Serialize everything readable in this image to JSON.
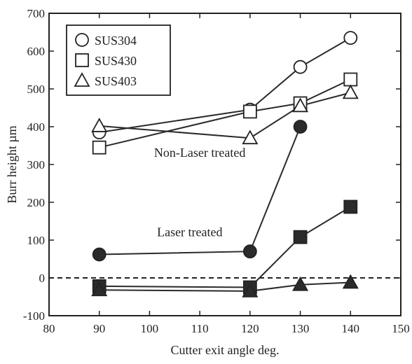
{
  "chart_data": {
    "type": "line",
    "xlabel": "Cutter exit angle deg.",
    "ylabel": "Burr height µm",
    "xlim": [
      80,
      150
    ],
    "ylim": [
      -100,
      700
    ],
    "xticks": [
      80,
      90,
      100,
      110,
      120,
      130,
      140,
      150
    ],
    "yticks": [
      -100,
      0,
      100,
      200,
      300,
      400,
      500,
      600,
      700
    ],
    "x": [
      90,
      120,
      130,
      140
    ],
    "grid": false,
    "legend_position": "top-left",
    "reference_line": {
      "y": 0,
      "style": "dashed"
    },
    "series": [
      {
        "name": "SUS304",
        "group": "Non-Laser treated",
        "marker": "circle",
        "filled": false,
        "values": [
          385,
          445,
          558,
          635
        ]
      },
      {
        "name": "SUS430",
        "group": "Non-Laser treated",
        "marker": "square",
        "filled": false,
        "values": [
          345,
          440,
          462,
          525
        ]
      },
      {
        "name": "SUS403",
        "group": "Non-Laser treated",
        "marker": "triangle",
        "filled": false,
        "values": [
          402,
          370,
          455,
          490
        ]
      },
      {
        "name": "SUS304",
        "group": "Laser treated",
        "marker": "circle",
        "filled": true,
        "values": [
          62,
          70,
          400,
          null
        ]
      },
      {
        "name": "SUS430",
        "group": "Laser treated",
        "marker": "square",
        "filled": true,
        "values": [
          -22,
          -25,
          108,
          188
        ]
      },
      {
        "name": "SUS403",
        "group": "Laser treated",
        "marker": "triangle",
        "filled": true,
        "values": [
          -32,
          -35,
          -18,
          -12
        ]
      }
    ],
    "legend": [
      "SUS304",
      "SUS430",
      "SUS403"
    ],
    "annotations": [
      {
        "text": "Non-Laser treated",
        "x": 110,
        "y": 320
      },
      {
        "text": "Laser treated",
        "x": 108,
        "y": 110
      }
    ]
  }
}
